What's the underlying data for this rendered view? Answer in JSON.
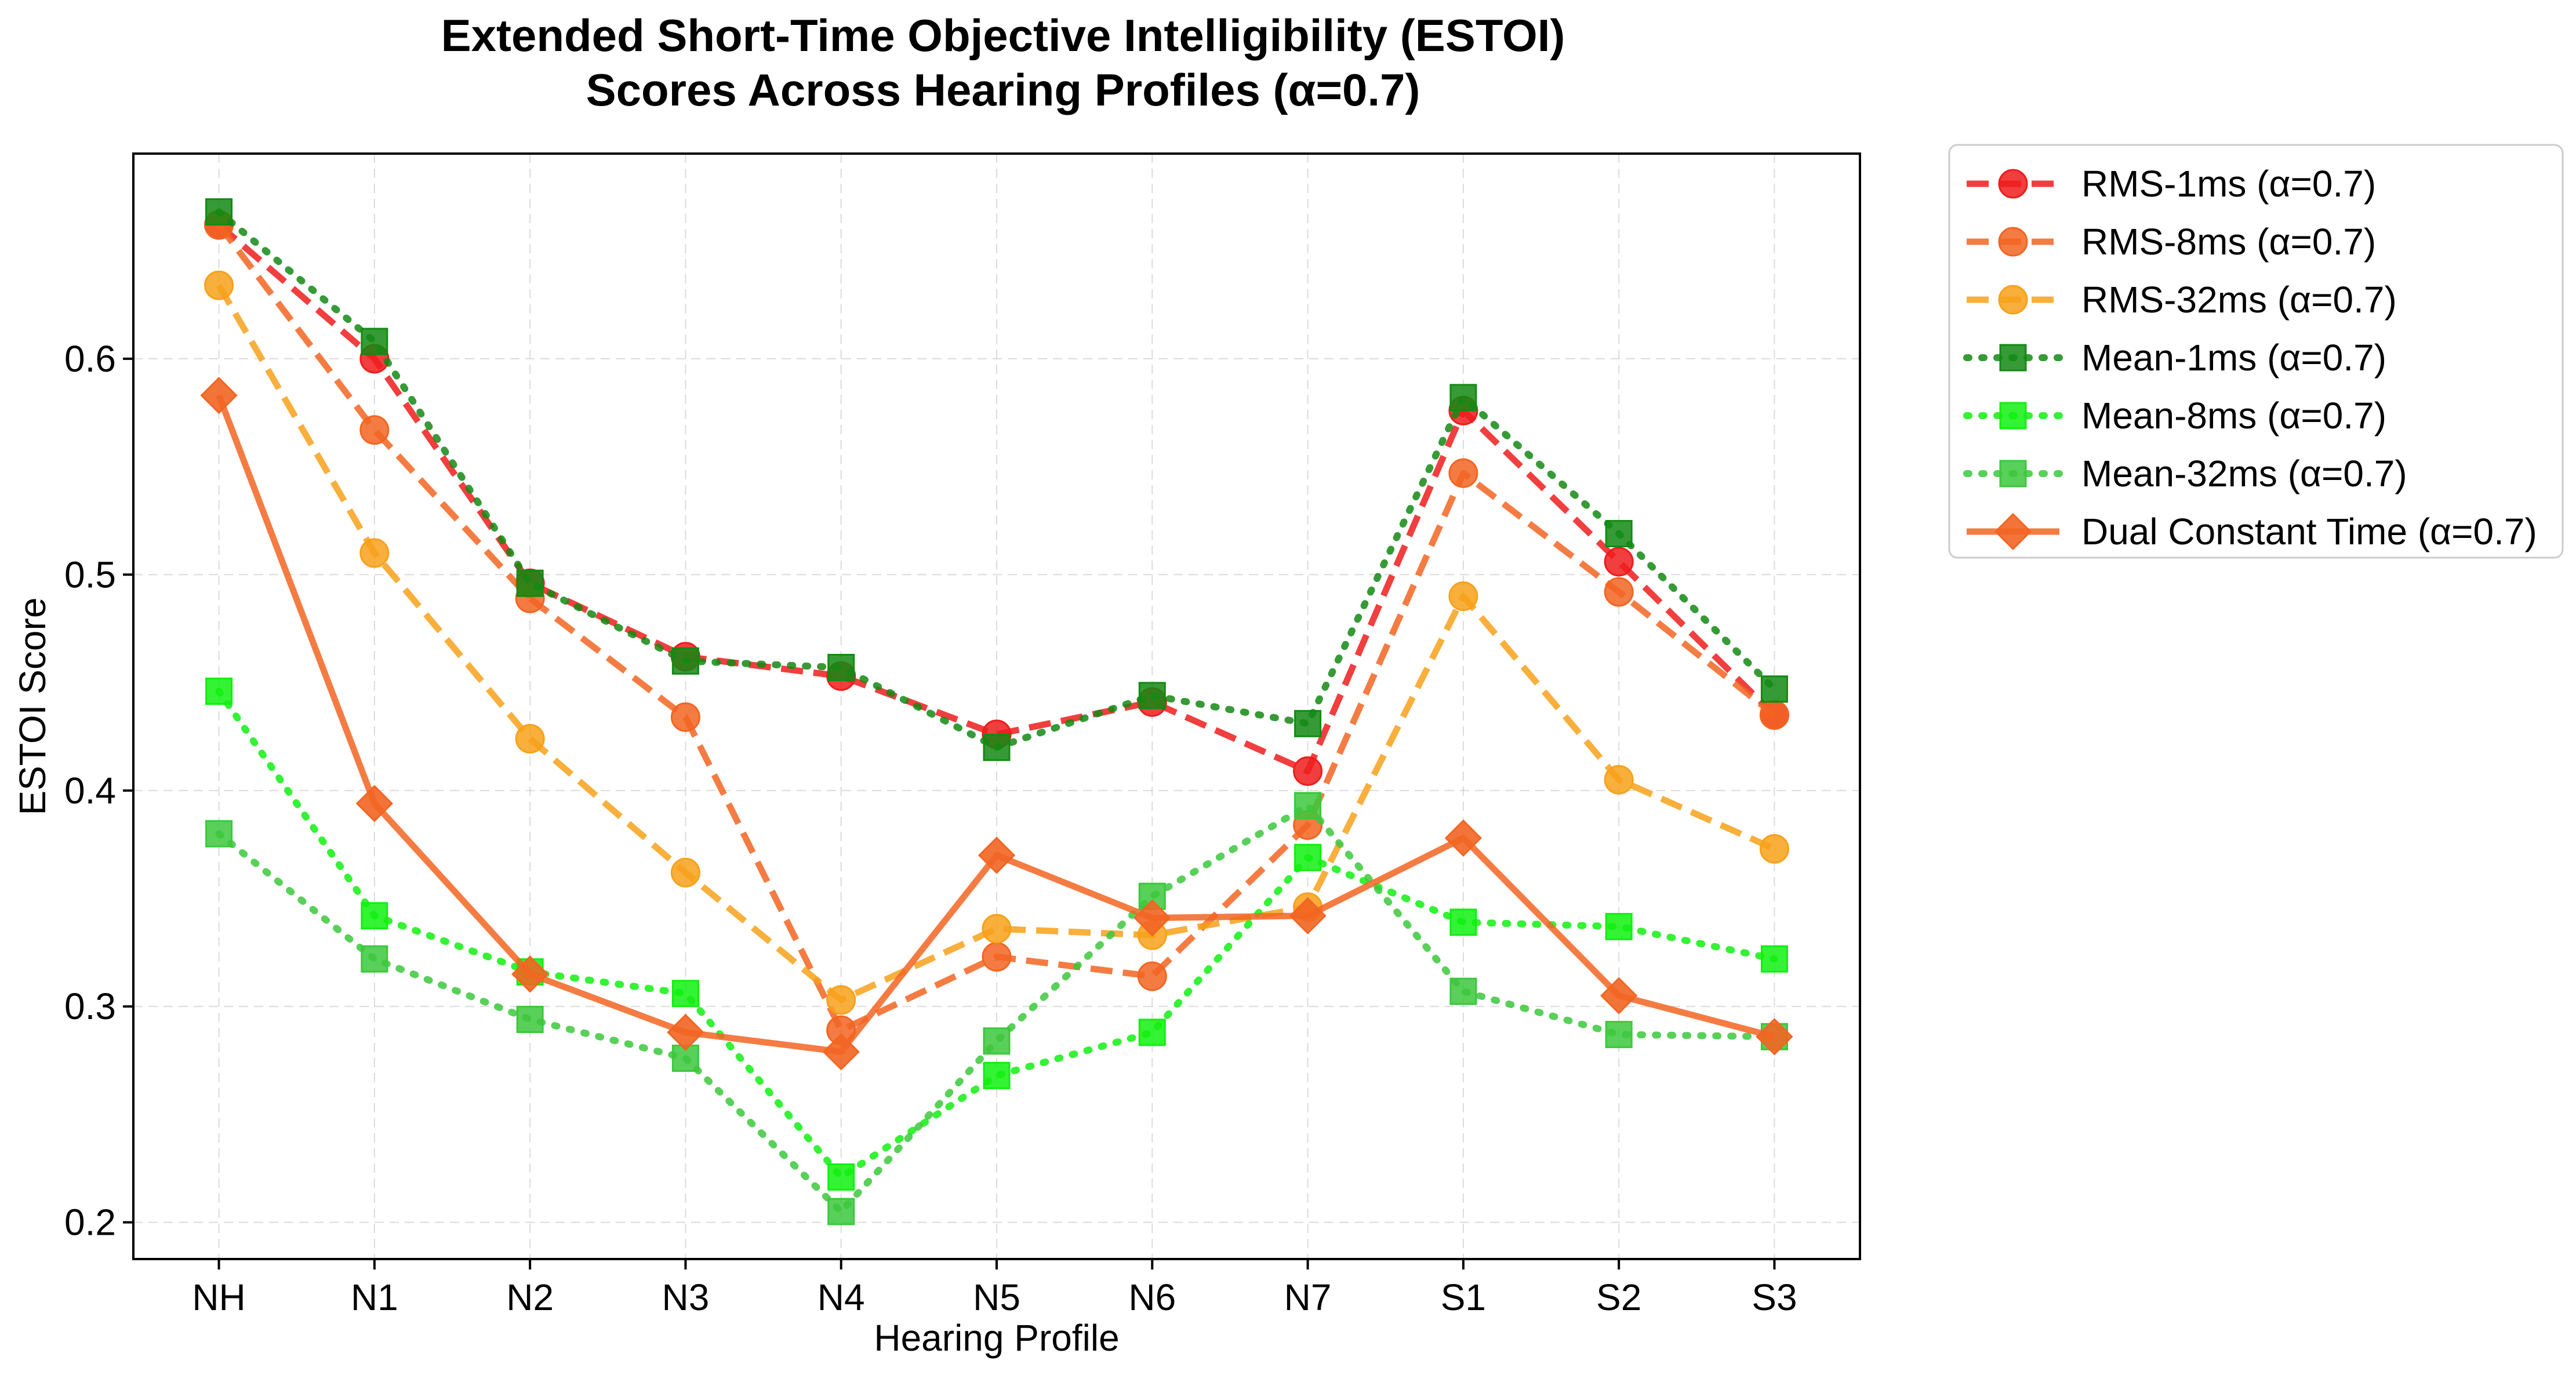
{
  "chart_data": {
    "type": "line",
    "title": [
      "Extended Short-Time Objective Intelligibility (ESTOI)",
      "Scores Across Hearing Profiles (α=0.7)"
    ],
    "xlabel": "Hearing Profile",
    "ylabel": "ESTOI Score",
    "categories": [
      "NH",
      "N1",
      "N2",
      "N3",
      "N4",
      "N5",
      "N6",
      "N7",
      "S1",
      "S2",
      "S3"
    ],
    "ylim": [
      0.183,
      0.695
    ],
    "yticks": [
      0.2,
      0.3,
      0.4,
      0.5,
      0.6
    ],
    "ytick_labels": [
      "0.2",
      "0.3",
      "0.4",
      "0.5",
      "0.6"
    ],
    "grid": true,
    "legend_position": "outside-right",
    "series": [
      {
        "name": "RMS-1ms (α=0.7)",
        "color": "#ee1c1c",
        "dash": "dashed",
        "marker": "circle",
        "values": [
          0.662,
          0.6,
          0.496,
          0.462,
          0.453,
          0.426,
          0.441,
          0.409,
          0.576,
          0.506,
          0.435
        ]
      },
      {
        "name": "RMS-8ms (α=0.7)",
        "color": "#f26522",
        "dash": "dashed",
        "marker": "circle",
        "values": [
          0.662,
          0.567,
          0.489,
          0.434,
          0.289,
          0.323,
          0.314,
          0.384,
          0.547,
          0.492,
          0.435
        ]
      },
      {
        "name": "RMS-32ms (α=0.7)",
        "color": "#f7a11a",
        "dash": "dashed",
        "marker": "circle",
        "values": [
          0.634,
          0.51,
          0.424,
          0.362,
          0.303,
          0.336,
          0.333,
          0.346,
          0.49,
          0.405,
          0.373
        ]
      },
      {
        "name": "Mean-1ms (α=0.7)",
        "color": "#138a13",
        "dash": "dotted",
        "marker": "square",
        "values": [
          0.668,
          0.608,
          0.496,
          0.46,
          0.457,
          0.42,
          0.444,
          0.431,
          0.582,
          0.519,
          0.447
        ]
      },
      {
        "name": "Mean-8ms (α=0.7)",
        "color": "#10f010",
        "dash": "dotted",
        "marker": "square",
        "values": [
          0.446,
          0.342,
          0.316,
          0.306,
          0.221,
          0.268,
          0.288,
          0.369,
          0.339,
          0.337,
          0.322
        ]
      },
      {
        "name": "Mean-32ms (α=0.7)",
        "color": "#3cc83c",
        "dash": "dotted",
        "marker": "square",
        "values": [
          0.38,
          0.322,
          0.294,
          0.276,
          0.205,
          0.284,
          0.351,
          0.393,
          0.307,
          0.287,
          0.286
        ]
      },
      {
        "name": "Dual Constant Time (α=0.7)",
        "color": "#f26522",
        "dash": "solid",
        "marker": "diamond",
        "values": [
          0.583,
          0.394,
          0.315,
          0.288,
          0.279,
          0.37,
          0.341,
          0.342,
          0.378,
          0.305,
          0.286
        ]
      }
    ]
  }
}
